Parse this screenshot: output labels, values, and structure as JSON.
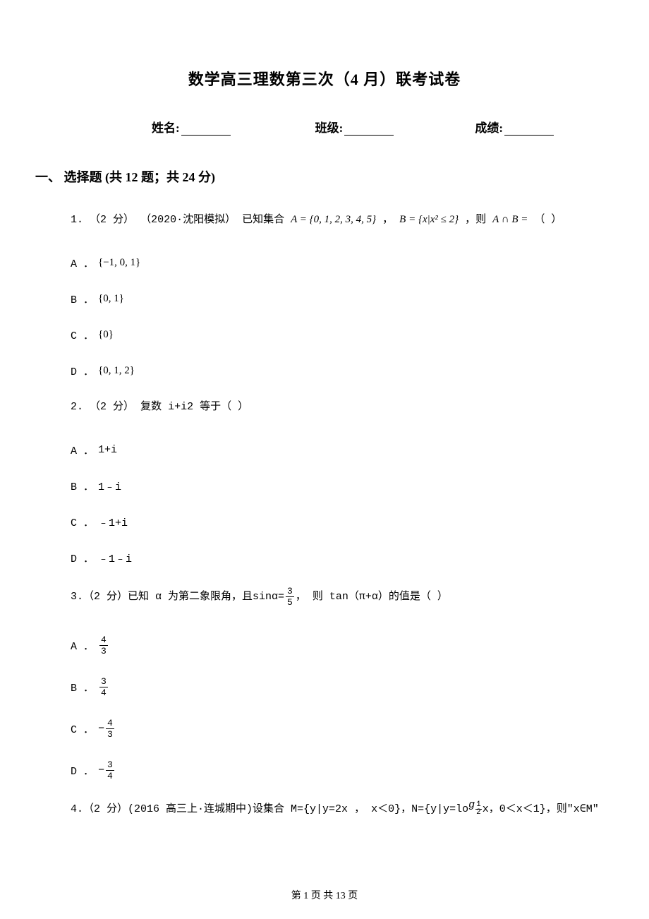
{
  "title": "数学高三理数第三次（4 月）联考试卷",
  "fields": {
    "name_label": "姓名:",
    "class_label": "班级:",
    "score_label": "成绩:"
  },
  "section": {
    "header": "一、 选择题 (共 12 题；共 24 分)"
  },
  "questions": [
    {
      "number": "1.",
      "points": "（2 分）",
      "source": "（2020·沈阳模拟）",
      "stem_pre": "已知集合 ",
      "set_A": "A = {0, 1, 2, 3, 4, 5}",
      "comma1": " ， ",
      "set_B": "B = {x|x² ≤ 2}",
      "stem_post": " ，则 ",
      "set_result": "A ∩ B =",
      "paren": " （     ）",
      "options": [
        {
          "label": "A ．",
          "value": "{−1, 0, 1}"
        },
        {
          "label": "B ．",
          "value": "{0, 1}"
        },
        {
          "label": "C ．",
          "value": "{0}"
        },
        {
          "label": "D ．",
          "value": "{0, 1, 2}"
        }
      ]
    },
    {
      "number": "2.",
      "points": "（2 分）",
      "stem": " 复数 i+i2 等于（    ）",
      "options": [
        {
          "label": "A ．",
          "value": "1+i"
        },
        {
          "label": "B ．",
          "value": "1﹣i"
        },
        {
          "label": "C ．",
          "value": "﹣1+i"
        },
        {
          "label": "D ．",
          "value": "﹣1﹣i"
        }
      ]
    },
    {
      "number": "3.",
      "points": "（2 分）",
      "stem_pre": " 已知 α 为第二象限角，且sinα=",
      "frac_num": "3",
      "frac_den": "5",
      "stem_post": " ，  则 tan（π+α）的值是（    ）",
      "options": [
        {
          "label": "A ．",
          "num": "4",
          "den": "3",
          "neg": false
        },
        {
          "label": "B ．",
          "num": "3",
          "den": "4",
          "neg": false
        },
        {
          "label": "C ．",
          "num": "4",
          "den": "3",
          "neg": true
        },
        {
          "label": "D ．",
          "num": "3",
          "den": "4",
          "neg": true
        }
      ]
    },
    {
      "number": "4.",
      "points": "（2 分）",
      "source": "(2016 高三上·连城期中)",
      "stem_pre": " 设集合 M={y|y=2x ， x＜0}，N={y|y=lo ",
      "log_g": "g",
      "log_num": "1",
      "log_den": "2",
      "stem_post": " x，0＜x＜1}，则\"x∈M\""
    }
  ],
  "footer": "第 1 页 共 13 页",
  "colors": {
    "text": "#000000",
    "background": "#ffffff"
  },
  "typography": {
    "title_fontsize": 22,
    "body_fontsize": 15,
    "section_fontsize": 18
  }
}
